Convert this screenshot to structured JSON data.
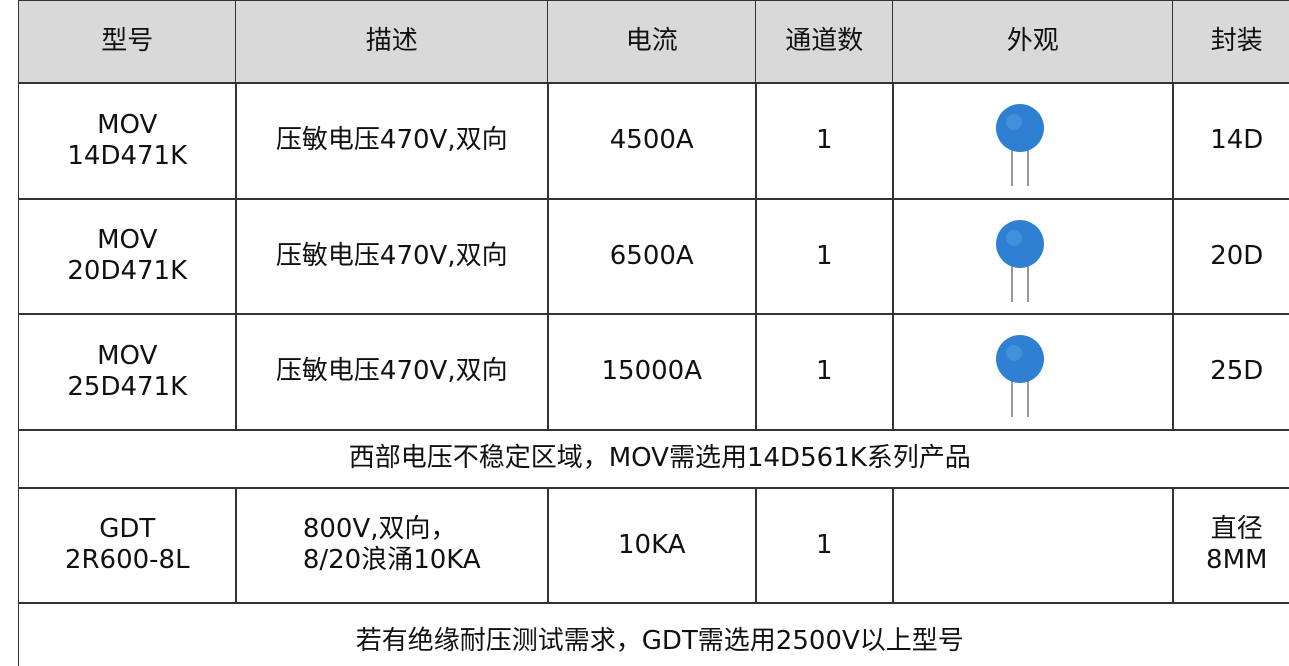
{
  "table": {
    "header": [
      "型号",
      "描述",
      "电流",
      "通道数",
      "外观",
      "封装"
    ],
    "rows": [
      {
        "model": "MOV\n14D471K",
        "description": "压敏电压470V,双向",
        "current": "4500A",
        "channels": 1,
        "package": "14D"
      },
      {
        "model": "MOV\n20D471K",
        "description": "压敏电压470V,双向",
        "current": "6500A",
        "channels": 1,
        "package": "20D"
      },
      {
        "model": "MOV\n25D471K",
        "description": "压敏电压470V,双向",
        "current": "15000A",
        "channels": 1,
        "package": "25D"
      },
      {
        "note": "西部电压不稳定区域，MOV需选用14D561K系列产品"
      },
      {
        "model": "GDT\n2R600-8L",
        "description": "800V,双向，\n8/20浪涌10KA",
        "current": "10KA",
        "channels": 1,
        "package": "直径\n8MM"
      },
      {
        "note": "若有绝缘耐压测试需求，GDT需选用2500V以上型号"
      }
    ]
  }
}
